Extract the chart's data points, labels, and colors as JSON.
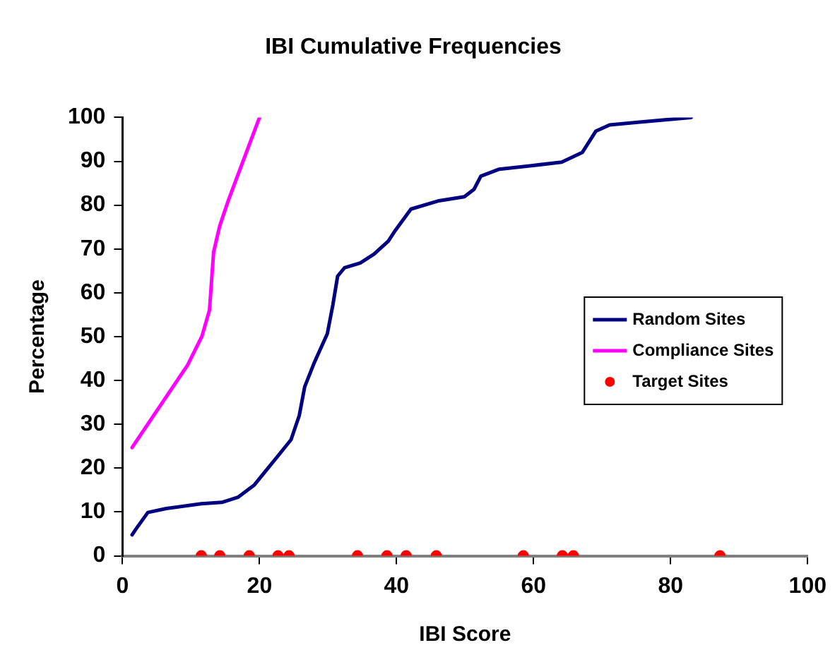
{
  "chart_data": {
    "type": "line",
    "title": "IBI Cumulative Frequencies",
    "xlabel": "IBI Score",
    "ylabel": "Percentage",
    "xlim": [
      0,
      100
    ],
    "xticks": [
      0,
      20,
      40,
      60,
      80,
      100
    ],
    "ylim": [
      0,
      100
    ],
    "yticks": [
      0,
      10,
      20,
      30,
      40,
      50,
      60,
      70,
      80,
      90,
      100
    ],
    "grid": false,
    "legend": "right",
    "marker": "none",
    "line_style": "solid",
    "series": [
      {
        "name": "Random Sites",
        "color": "#000080",
        "x": [
          1.4,
          2.0,
          3.7,
          6.4,
          11.5,
          14.5,
          16.9,
          19.2,
          20.6,
          22.9,
          24.6,
          25.8,
          26.6,
          28.0,
          29.9,
          30.7,
          31.4,
          32.4,
          34.7,
          36.7,
          38.8,
          39.8,
          42.1,
          46.2,
          49.9,
          51.3,
          52.3,
          55.0,
          59.7,
          64.1,
          67.1,
          69.1,
          71.1,
          75.2,
          83
        ],
        "values": [
          4.8,
          6.2,
          9.9,
          10.8,
          11.9,
          12.2,
          13.4,
          16.1,
          18.8,
          23.2,
          26.5,
          32,
          38.6,
          44.1,
          50.7,
          57.2,
          63.8,
          65.7,
          66.8,
          68.8,
          71.8,
          74.2,
          79.1,
          81,
          81.9,
          83.6,
          86.6,
          88.2,
          89,
          89.8,
          92,
          96.9,
          98.3,
          98.9,
          100
        ]
      },
      {
        "name": "Compliance Sites",
        "color": "#ff00ff",
        "x": [
          1.4,
          9.5,
          11.6,
          12.7,
          13.0,
          13.3,
          14.2,
          15.5,
          20
        ],
        "values": [
          24.7,
          43.5,
          50.1,
          56.1,
          62.7,
          69.3,
          75.3,
          81.3,
          100
        ]
      },
      {
        "name": "Target Sites",
        "type": "scatter",
        "marker": "circle",
        "color": "#ff0000",
        "x": [
          11.5,
          14.2,
          18.5,
          22.7,
          24.3,
          34.3,
          38.6,
          41.4,
          45.8,
          58.5,
          64.2,
          65.8,
          87.2
        ],
        "values": [
          0,
          0,
          0,
          0,
          0,
          0,
          0,
          0,
          0,
          0,
          0,
          0,
          0
        ]
      }
    ]
  }
}
